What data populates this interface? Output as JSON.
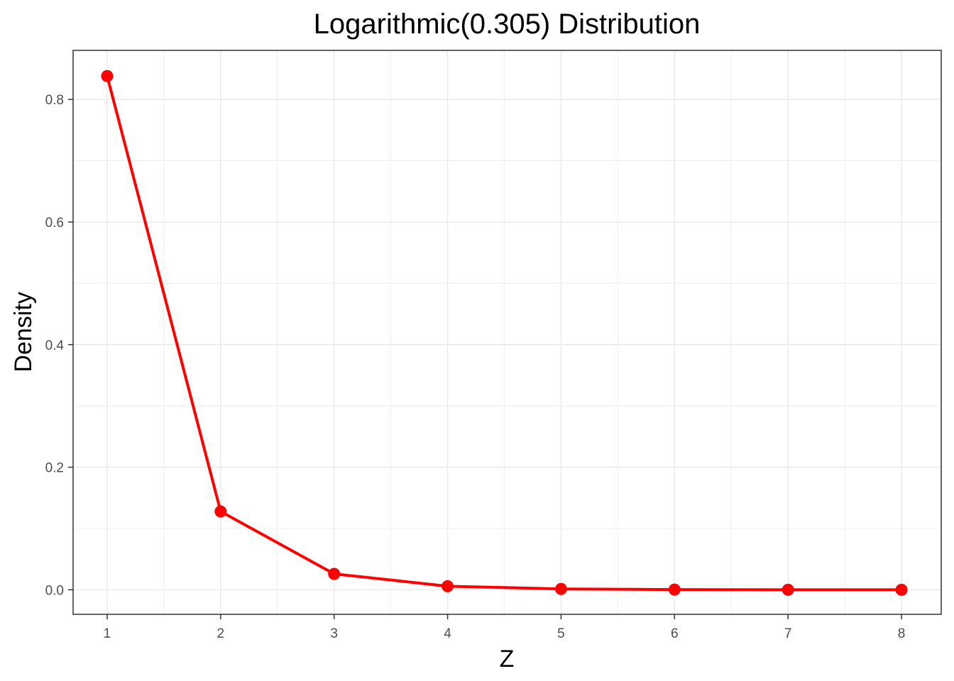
{
  "chart_data": {
    "type": "line",
    "title": "Logarithmic(0.305) Distribution",
    "xlabel": "Z",
    "ylabel": "Density",
    "x": [
      1,
      2,
      3,
      4,
      5,
      6,
      7,
      8
    ],
    "series": [
      {
        "values": [
          0.8381,
          0.1278,
          0.026,
          0.0059,
          0.0014,
          0.0004,
          0.0001,
          0.0
        ]
      }
    ],
    "xlim": [
      0.7,
      8.35
    ],
    "ylim": [
      -0.04,
      0.88
    ],
    "x_ticks": [
      "1",
      "2",
      "3",
      "4",
      "5",
      "6",
      "7",
      "8"
    ],
    "y_ticks": [
      "0.0",
      "0.2",
      "0.4",
      "0.6",
      "0.8"
    ],
    "grid": true,
    "line_color": "#ff0000",
    "point_color": "#ff0000",
    "panel_border_color": "#333333",
    "grid_color": "#ebebeb"
  }
}
